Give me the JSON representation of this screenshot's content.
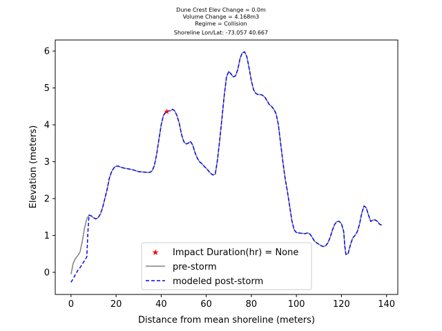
{
  "chart_data": {
    "type": "line",
    "title_lines": [
      "Dune Crest Elev Change = 0.0m",
      "Volume Change = 4.168m3",
      "Regime = Collision",
      "Shoreline Lon/Lat: -73.057 40.667"
    ],
    "xlabel": "Distance from mean shoreline (meters)",
    "ylabel": "Elevation (meters)",
    "xlim": [
      -7,
      145
    ],
    "ylim": [
      -0.6,
      6.3
    ],
    "xticks": [
      0,
      20,
      40,
      60,
      80,
      100,
      120,
      140
    ],
    "yticks": [
      0,
      1,
      2,
      3,
      4,
      5,
      6
    ],
    "grid": false,
    "legend_position": "lower-center",
    "colors": {
      "pre_storm": "#808080",
      "post_storm": "#0000ff",
      "impact_marker": "#ff0000"
    },
    "marker": {
      "label": "Impact Duration(hr) = None",
      "x": 42.5,
      "y": 4.36,
      "shape": "star"
    },
    "series": [
      {
        "name": "pre-storm",
        "style": "solid",
        "points": [
          [
            0,
            -0.05
          ],
          [
            1,
            0.25
          ],
          [
            2,
            0.38
          ],
          [
            3,
            0.45
          ],
          [
            4,
            0.55
          ],
          [
            5,
            0.85
          ],
          [
            6,
            1.2
          ],
          [
            7,
            1.45
          ],
          [
            8,
            1.55
          ],
          [
            9,
            1.53
          ],
          [
            10,
            1.48
          ],
          [
            11,
            1.45
          ],
          [
            12,
            1.48
          ],
          [
            13,
            1.58
          ],
          [
            14,
            1.75
          ],
          [
            15,
            2.0
          ],
          [
            16,
            2.25
          ],
          [
            17,
            2.55
          ],
          [
            18,
            2.73
          ],
          [
            19,
            2.83
          ],
          [
            20,
            2.88
          ],
          [
            21,
            2.88
          ],
          [
            22,
            2.85
          ],
          [
            24,
            2.82
          ],
          [
            26,
            2.8
          ],
          [
            28,
            2.77
          ],
          [
            30,
            2.73
          ],
          [
            32,
            2.72
          ],
          [
            34,
            2.71
          ],
          [
            35,
            2.71
          ],
          [
            36,
            2.75
          ],
          [
            37,
            2.9
          ],
          [
            38,
            3.2
          ],
          [
            39,
            3.6
          ],
          [
            40,
            4.0
          ],
          [
            41,
            4.25
          ],
          [
            42,
            4.35
          ],
          [
            43,
            4.38
          ],
          [
            44,
            4.38
          ],
          [
            45,
            4.42
          ],
          [
            46,
            4.38
          ],
          [
            47,
            4.25
          ],
          [
            48,
            4.05
          ],
          [
            49,
            3.75
          ],
          [
            50,
            3.55
          ],
          [
            51,
            3.48
          ],
          [
            52,
            3.5
          ],
          [
            53,
            3.55
          ],
          [
            54,
            3.45
          ],
          [
            55,
            3.25
          ],
          [
            56,
            3.1
          ],
          [
            57,
            3.0
          ],
          [
            58,
            2.95
          ],
          [
            59,
            2.88
          ],
          [
            60,
            2.82
          ],
          [
            61,
            2.75
          ],
          [
            62,
            2.68
          ],
          [
            63,
            2.64
          ],
          [
            64,
            2.66
          ],
          [
            65,
            3.05
          ],
          [
            66,
            3.6
          ],
          [
            67,
            4.2
          ],
          [
            68,
            4.8
          ],
          [
            69,
            5.3
          ],
          [
            70,
            5.45
          ],
          [
            71,
            5.38
          ],
          [
            72,
            5.3
          ],
          [
            73,
            5.33
          ],
          [
            74,
            5.5
          ],
          [
            75,
            5.8
          ],
          [
            76,
            5.95
          ],
          [
            77,
            5.98
          ],
          [
            78,
            5.85
          ],
          [
            79,
            5.55
          ],
          [
            80,
            5.2
          ],
          [
            81,
            4.95
          ],
          [
            82,
            4.85
          ],
          [
            83,
            4.82
          ],
          [
            84,
            4.82
          ],
          [
            85,
            4.8
          ],
          [
            86,
            4.75
          ],
          [
            87,
            4.65
          ],
          [
            88,
            4.55
          ],
          [
            89,
            4.5
          ],
          [
            90,
            4.42
          ],
          [
            91,
            4.3
          ],
          [
            92,
            4.0
          ],
          [
            93,
            3.5
          ],
          [
            94,
            3.0
          ],
          [
            95,
            2.55
          ],
          [
            96,
            2.2
          ],
          [
            97,
            1.8
          ],
          [
            98,
            1.4
          ],
          [
            99,
            1.15
          ],
          [
            100,
            1.08
          ],
          [
            102,
            1.06
          ],
          [
            104,
            1.05
          ],
          [
            105,
            1.07
          ],
          [
            106,
            1.04
          ],
          [
            107,
            0.95
          ],
          [
            108,
            0.85
          ],
          [
            109,
            0.8
          ],
          [
            110,
            0.76
          ],
          [
            111,
            0.72
          ],
          [
            112,
            0.7
          ],
          [
            113,
            0.72
          ],
          [
            114,
            0.8
          ],
          [
            115,
            0.95
          ],
          [
            116,
            1.15
          ],
          [
            117,
            1.3
          ],
          [
            118,
            1.38
          ],
          [
            119,
            1.38
          ],
          [
            120,
            1.32
          ],
          [
            121,
            1.1
          ],
          [
            121.5,
            0.7
          ],
          [
            122,
            0.48
          ],
          [
            123,
            0.52
          ],
          [
            124,
            0.75
          ],
          [
            125,
            0.93
          ],
          [
            126,
            1.0
          ],
          [
            127,
            1.1
          ],
          [
            128,
            1.3
          ],
          [
            129,
            1.6
          ],
          [
            130,
            1.8
          ],
          [
            131,
            1.75
          ],
          [
            132,
            1.55
          ],
          [
            133,
            1.38
          ],
          [
            134,
            1.42
          ],
          [
            135,
            1.42
          ],
          [
            136,
            1.38
          ],
          [
            137,
            1.3
          ],
          [
            138,
            1.28
          ]
        ]
      },
      {
        "name": "modeled post-storm",
        "style": "dashed",
        "points": [
          [
            0,
            -0.27
          ],
          [
            1,
            -0.17
          ],
          [
            2,
            -0.05
          ],
          [
            3,
            0.05
          ],
          [
            4,
            0.13
          ],
          [
            5,
            0.22
          ],
          [
            6,
            0.32
          ],
          [
            7,
            0.42
          ],
          [
            7.5,
            1.1
          ],
          [
            8,
            1.55
          ],
          [
            9,
            1.53
          ],
          [
            10,
            1.48
          ],
          [
            11,
            1.45
          ],
          [
            12,
            1.48
          ],
          [
            13,
            1.58
          ],
          [
            14,
            1.75
          ],
          [
            15,
            2.0
          ],
          [
            16,
            2.25
          ],
          [
            17,
            2.55
          ],
          [
            18,
            2.73
          ],
          [
            19,
            2.83
          ],
          [
            20,
            2.88
          ],
          [
            21,
            2.88
          ],
          [
            22,
            2.85
          ],
          [
            24,
            2.82
          ],
          [
            26,
            2.8
          ],
          [
            28,
            2.77
          ],
          [
            30,
            2.73
          ],
          [
            32,
            2.72
          ],
          [
            34,
            2.71
          ],
          [
            35,
            2.71
          ],
          [
            36,
            2.75
          ],
          [
            37,
            2.9
          ],
          [
            38,
            3.2
          ],
          [
            39,
            3.6
          ],
          [
            40,
            4.0
          ],
          [
            41,
            4.25
          ],
          [
            42,
            4.35
          ],
          [
            43,
            4.38
          ],
          [
            44,
            4.38
          ],
          [
            45,
            4.42
          ],
          [
            46,
            4.38
          ],
          [
            47,
            4.25
          ],
          [
            48,
            4.05
          ],
          [
            49,
            3.75
          ],
          [
            50,
            3.55
          ],
          [
            51,
            3.48
          ],
          [
            52,
            3.5
          ],
          [
            53,
            3.55
          ],
          [
            54,
            3.45
          ],
          [
            55,
            3.25
          ],
          [
            56,
            3.1
          ],
          [
            57,
            3.0
          ],
          [
            58,
            2.95
          ],
          [
            59,
            2.88
          ],
          [
            60,
            2.82
          ],
          [
            61,
            2.75
          ],
          [
            62,
            2.68
          ],
          [
            63,
            2.64
          ],
          [
            64,
            2.66
          ],
          [
            65,
            3.05
          ],
          [
            66,
            3.6
          ],
          [
            67,
            4.2
          ],
          [
            68,
            4.8
          ],
          [
            69,
            5.3
          ],
          [
            70,
            5.45
          ],
          [
            71,
            5.38
          ],
          [
            72,
            5.3
          ],
          [
            73,
            5.33
          ],
          [
            74,
            5.5
          ],
          [
            75,
            5.8
          ],
          [
            76,
            5.95
          ],
          [
            77,
            5.98
          ],
          [
            78,
            5.85
          ],
          [
            79,
            5.55
          ],
          [
            80,
            5.2
          ],
          [
            81,
            4.95
          ],
          [
            82,
            4.85
          ],
          [
            83,
            4.82
          ],
          [
            84,
            4.82
          ],
          [
            85,
            4.8
          ],
          [
            86,
            4.75
          ],
          [
            87,
            4.65
          ],
          [
            88,
            4.55
          ],
          [
            89,
            4.5
          ],
          [
            90,
            4.42
          ],
          [
            91,
            4.3
          ],
          [
            92,
            4.0
          ],
          [
            93,
            3.5
          ],
          [
            94,
            3.0
          ],
          [
            95,
            2.55
          ],
          [
            96,
            2.2
          ],
          [
            97,
            1.8
          ],
          [
            98,
            1.4
          ],
          [
            99,
            1.15
          ],
          [
            100,
            1.08
          ],
          [
            102,
            1.06
          ],
          [
            104,
            1.05
          ],
          [
            105,
            1.07
          ],
          [
            106,
            1.04
          ],
          [
            107,
            0.95
          ],
          [
            108,
            0.85
          ],
          [
            109,
            0.8
          ],
          [
            110,
            0.76
          ],
          [
            111,
            0.72
          ],
          [
            112,
            0.7
          ],
          [
            113,
            0.72
          ],
          [
            114,
            0.8
          ],
          [
            115,
            0.95
          ],
          [
            116,
            1.15
          ],
          [
            117,
            1.3
          ],
          [
            118,
            1.38
          ],
          [
            119,
            1.38
          ],
          [
            120,
            1.32
          ],
          [
            121,
            1.1
          ],
          [
            121.5,
            0.7
          ],
          [
            122,
            0.48
          ],
          [
            123,
            0.52
          ],
          [
            124,
            0.75
          ],
          [
            125,
            0.93
          ],
          [
            126,
            1.0
          ],
          [
            127,
            1.1
          ],
          [
            128,
            1.3
          ],
          [
            129,
            1.6
          ],
          [
            130,
            1.8
          ],
          [
            131,
            1.75
          ],
          [
            132,
            1.55
          ],
          [
            133,
            1.38
          ],
          [
            134,
            1.42
          ],
          [
            135,
            1.42
          ],
          [
            136,
            1.38
          ],
          [
            137,
            1.3
          ],
          [
            138,
            1.28
          ]
        ]
      }
    ]
  }
}
